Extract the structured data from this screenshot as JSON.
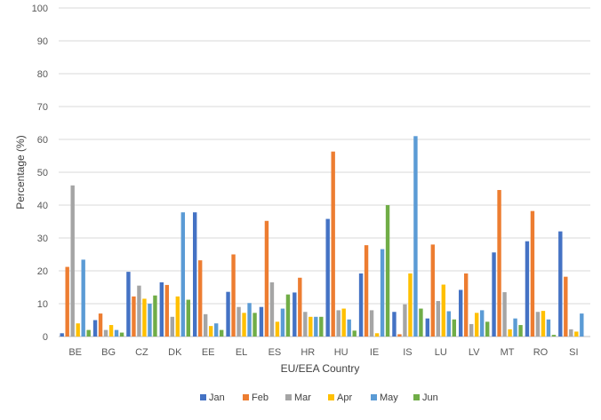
{
  "chart_data": {
    "type": "bar",
    "xlabel": "EU/EEA Country",
    "ylabel": "Percentage (%)",
    "ylim": [
      0,
      100
    ],
    "yticks": [
      0,
      10,
      20,
      30,
      40,
      50,
      60,
      70,
      80,
      90,
      100
    ],
    "grid": true,
    "legend": "bottom",
    "categories": [
      "BE",
      "BG",
      "CZ",
      "DK",
      "EE",
      "EL",
      "ES",
      "HR",
      "HU",
      "IE",
      "IS",
      "LU",
      "LV",
      "MT",
      "RO",
      "SI"
    ],
    "series": [
      {
        "name": "Jan",
        "color": "#4472C4",
        "values": [
          1,
          5,
          19.7,
          16.5,
          37.8,
          13.6,
          9,
          13.4,
          35.8,
          19.2,
          7.5,
          5.5,
          14.2,
          25.6,
          29,
          32
        ]
      },
      {
        "name": "Feb",
        "color": "#ED7D31",
        "values": [
          21.2,
          7,
          12.2,
          15.7,
          23.2,
          25,
          35.2,
          17.9,
          56.3,
          27.8,
          0.7,
          28,
          19.2,
          44.6,
          38.2,
          18.2
        ]
      },
      {
        "name": "Mar",
        "color": "#A5A5A5",
        "values": [
          46,
          2,
          15.5,
          6,
          6.8,
          9,
          16.5,
          7.5,
          8,
          8,
          9.8,
          10.8,
          3.8,
          13.5,
          7.5,
          2.2
        ]
      },
      {
        "name": "Apr",
        "color": "#FFC000",
        "values": [
          4,
          3.5,
          11.5,
          12.2,
          3.2,
          7.2,
          4.5,
          6,
          8.5,
          1,
          19.2,
          15.8,
          7.2,
          2.2,
          7.8,
          1.5
        ]
      },
      {
        "name": "May",
        "color": "#5B9BD5",
        "values": [
          23.4,
          2,
          10,
          37.8,
          4,
          10.2,
          8.5,
          6,
          5.2,
          26.6,
          61,
          7.7,
          8,
          5.5,
          5.2,
          7
        ]
      },
      {
        "name": "Jun",
        "color": "#70AD47",
        "values": [
          2,
          1.2,
          12.5,
          11.2,
          2,
          7.2,
          12.8,
          6,
          1.8,
          40,
          8.5,
          5.2,
          4.5,
          3.5,
          0.5,
          0
        ]
      }
    ]
  }
}
